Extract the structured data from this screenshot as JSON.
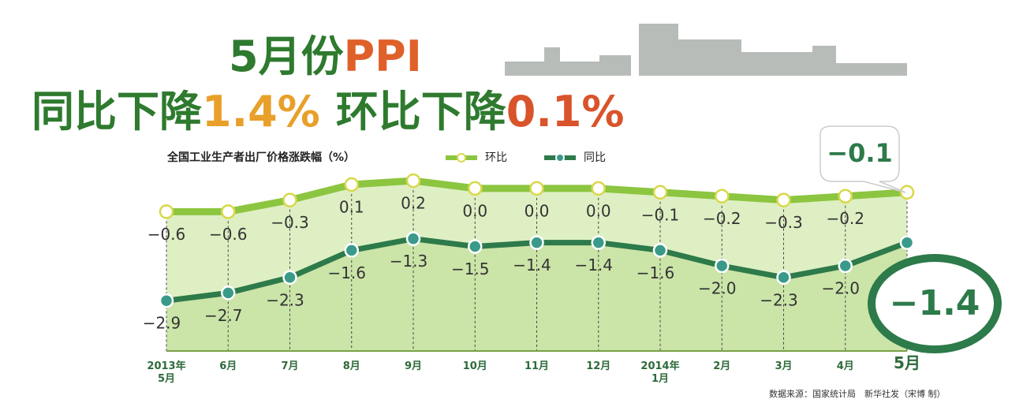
{
  "chart_data": {
    "type": "line",
    "title_segments": {
      "line1": [
        "5月份",
        "PPI"
      ],
      "line2": [
        "同比下降",
        "1.4%",
        "环比下降",
        "0.1%"
      ]
    },
    "subtitle": "全国工业生产者出厂价格涨跌幅（%）",
    "categories": [
      "2013年\n5月",
      "6月",
      "7月",
      "8月",
      "9月",
      "10月",
      "11月",
      "12月",
      "2014年\n1月",
      "2月",
      "3月",
      "4月",
      "5月"
    ],
    "series": [
      {
        "name": "环比",
        "color": "#8cc540",
        "values": [
          -0.6,
          -0.6,
          -0.3,
          0.1,
          0.2,
          0.0,
          0.0,
          0.0,
          -0.1,
          -0.2,
          -0.3,
          -0.2,
          -0.1
        ],
        "value_labels": [
          "−0.6",
          "−0.6",
          "−0.3",
          "0.1",
          "0.2",
          "0.0",
          "0.0",
          "0.0",
          "−0.1",
          "−0.2",
          "−0.3",
          "−0.2",
          "−0.1"
        ]
      },
      {
        "name": "同比",
        "color": "#2d7a4a",
        "values": [
          -2.9,
          -2.7,
          -2.3,
          -1.6,
          -1.3,
          -1.5,
          -1.4,
          -1.4,
          -1.6,
          -2.0,
          -2.3,
          -2.0,
          -1.4
        ],
        "value_labels": [
          "−2.9",
          "−2.7",
          "−2.3",
          "−1.6",
          "−1.3",
          "−1.5",
          "−1.4",
          "−1.4",
          "−1.6",
          "−2.0",
          "−2.3",
          "−2.0",
          "−1.4"
        ]
      }
    ],
    "ylim": [
      -4.2,
      1.2
    ],
    "source": "数据来源：国家统计局　新华社发（宋博 制）"
  }
}
